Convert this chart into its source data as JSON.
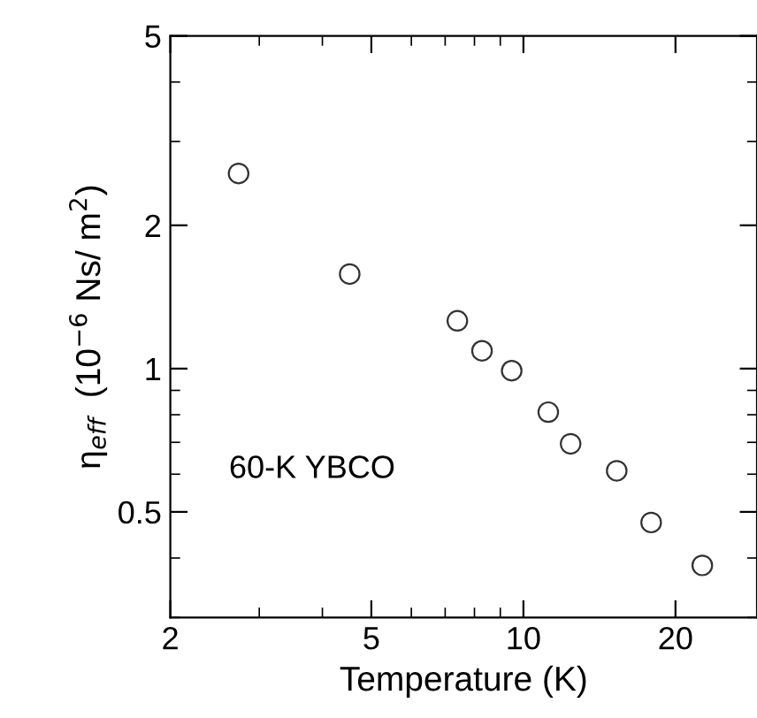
{
  "chart_data": {
    "type": "scatter",
    "xlabel": "Temperature (K)",
    "ylabel": "η$_{eff}$  (10$^{−6}$ Ns/ m$^{2}$)",
    "annotations": [
      "60-K YBCO"
    ],
    "x": [
      2.73,
      4.53,
      7.4,
      8.28,
      9.48,
      11.2,
      12.4,
      15.3,
      17.9,
      22.6
    ],
    "series": [
      {
        "color": "#333333",
        "values": [
          2.57,
          1.58,
          1.26,
          1.09,
          0.99,
          0.81,
          0.695,
          0.61,
          0.475,
          0.386
        ]
      }
    ],
    "log": "xy",
    "marker": "circle",
    "grid": false,
    "xlim": [
      2,
      29
    ],
    "ylim": [
      0.3,
      5
    ],
    "xticks": [
      2,
      5,
      10,
      20
    ],
    "yticks": [
      0.5,
      1,
      2,
      5
    ]
  }
}
